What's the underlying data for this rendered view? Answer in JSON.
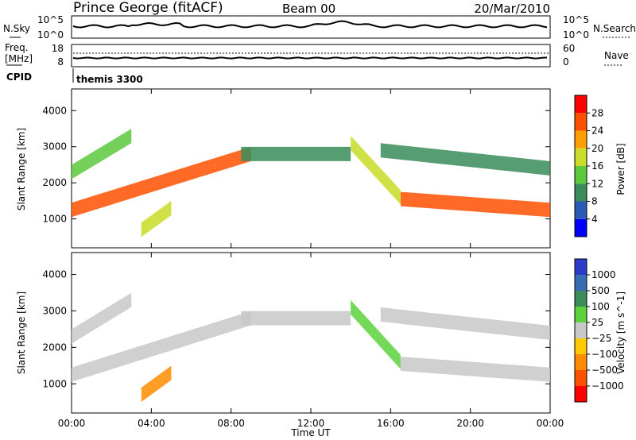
{
  "header": {
    "station": "Prince George (fitACF)",
    "beam": "Beam 00",
    "date": "20/Mar/2010"
  },
  "noise_panel": {
    "left_label": "N.Sky",
    "right_label": "N.Search",
    "left_ticks": [
      "10^5",
      "10^0"
    ],
    "right_ticks": [
      "10^5",
      "10^0"
    ]
  },
  "freq_panel": {
    "left_label_line1": "Freq.",
    "left_label_line2": "[MHz]",
    "right_label": "Nave",
    "left_ticks": [
      "18",
      "8"
    ],
    "right_ticks": [
      "60",
      "0"
    ]
  },
  "cpid": {
    "label": "CPID",
    "value": "themis 3300"
  },
  "x_axis": {
    "label": "Time UT",
    "ticks": [
      "00:00",
      "04:00",
      "08:00",
      "12:00",
      "16:00",
      "20:00",
      "00:00"
    ],
    "range_hours": [
      0,
      24
    ]
  },
  "colors": {
    "power": [
      "#0000ff",
      "#2a5ab4",
      "#3a8c5a",
      "#5cc83c",
      "#c8dc28",
      "#ffa000",
      "#ff5000",
      "#ff0000"
    ],
    "velocity": [
      "#2a3cc8",
      "#3a6cb4",
      "#3c8c5a",
      "#5cd23c",
      "#c8c8c8",
      "#ffc800",
      "#ff8c00",
      "#ff5000",
      "#ff0000"
    ],
    "power_mark": "#dc3c1e",
    "velocity_mark": "#c8c8c8"
  },
  "chart_data": [
    {
      "type": "heatmap",
      "name": "power",
      "ylabel": "Slant Range [km]",
      "yticks": [
        1000,
        2000,
        3000,
        4000
      ],
      "ylim": [
        200,
        4600
      ],
      "colorbar": {
        "label": "Power [dB]",
        "ticks": [
          "4",
          "8",
          "12",
          "16",
          "20",
          "24",
          "28"
        ],
        "range": [
          0,
          32
        ]
      },
      "bands": [
        {
          "t_start": 0.0,
          "t_end": 9.0,
          "range_start": 1250,
          "range_end": 2800,
          "dB": 26
        },
        {
          "t_start": 0.0,
          "t_end": 3.0,
          "range_start": 2300,
          "range_end": 3300,
          "dB": 14
        },
        {
          "t_start": 3.5,
          "t_end": 5.0,
          "range_start": 700,
          "range_end": 1300,
          "dB": 16
        },
        {
          "t_start": 8.5,
          "t_end": 14.0,
          "range_start": 2800,
          "range_end": 2800,
          "dB": 8
        },
        {
          "t_start": 14.0,
          "t_end": 16.5,
          "range_start": 3100,
          "range_end": 1600,
          "dB": 18
        },
        {
          "t_start": 16.5,
          "t_end": 24.0,
          "range_start": 1550,
          "range_end": 1250,
          "dB": 26
        },
        {
          "t_start": 15.5,
          "t_end": 24.0,
          "range_start": 2900,
          "range_end": 2400,
          "dB": 8
        }
      ]
    },
    {
      "type": "heatmap",
      "name": "velocity",
      "ylabel": "Slant Range [km]",
      "yticks": [
        1000,
        2000,
        3000,
        4000
      ],
      "ylim": [
        200,
        4600
      ],
      "colorbar": {
        "label": "Velocity [m s^-1]",
        "ticks": [
          "1000",
          "500",
          "100",
          "25",
          "−25",
          "−100",
          "−500",
          "−1000"
        ]
      },
      "bands": [
        {
          "t_start": 0.0,
          "t_end": 9.0,
          "range_start": 1250,
          "range_end": 2800,
          "velocity": 0
        },
        {
          "t_start": 0.0,
          "t_end": 3.0,
          "range_start": 2300,
          "range_end": 3300,
          "velocity": 0
        },
        {
          "t_start": 3.5,
          "t_end": 5.0,
          "range_start": 700,
          "range_end": 1300,
          "velocity": -150
        },
        {
          "t_start": 8.5,
          "t_end": 14.0,
          "range_start": 2800,
          "range_end": 2800,
          "velocity": 0
        },
        {
          "t_start": 14.0,
          "t_end": 16.5,
          "range_start": 3100,
          "range_end": 1600,
          "velocity": 50
        },
        {
          "t_start": 16.5,
          "t_end": 24.0,
          "range_start": 1550,
          "range_end": 1250,
          "velocity": 0
        },
        {
          "t_start": 15.5,
          "t_end": 24.0,
          "range_start": 2900,
          "range_end": 2400,
          "velocity": 0
        }
      ]
    }
  ]
}
